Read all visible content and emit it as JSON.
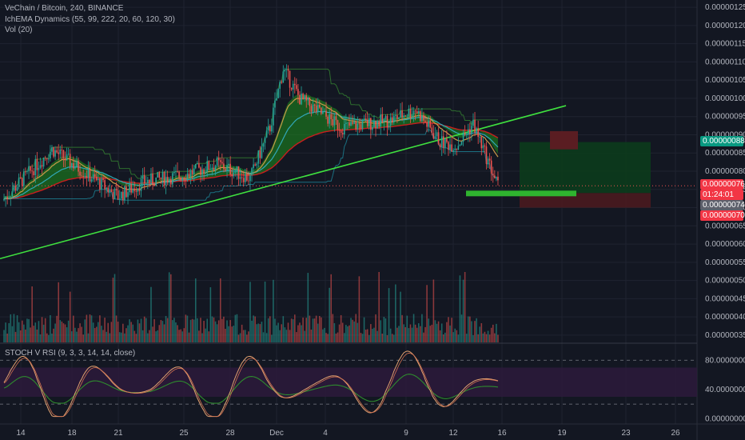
{
  "header": {
    "symbol_line": "VeChain / Bitcoin, 240, BINANCE",
    "indicator_line": "IchEMA Dynamics (55, 99, 222, 20, 60, 120, 30)",
    "volume_line": "Vol (20)",
    "rsi_line": "STOCH V RSI (9, 3, 3, 14, 14, close)"
  },
  "price_tags": {
    "target": "0.00000088",
    "current": "0.00000076",
    "countdown": "01:24:01",
    "level": "0.00000074",
    "stop": "0.00000070"
  },
  "colors": {
    "background": "#131722",
    "up": "#26a69a",
    "down": "#ef5350",
    "cloud": "#1d8f1d",
    "trendline": "#3fe03f",
    "ema_red": "#c81e1e",
    "ema_teal": "#31a8b8",
    "ema_orange": "#c89a4a",
    "rsi_k": "#e0a070",
    "rsi_d": "#2e8b2e",
    "target_tag": "#089981",
    "current_tag": "#f23645"
  },
  "chart_data": [
    {
      "type": "candlestick",
      "title": "VeChain / Bitcoin, 240, BINANCE",
      "x_tick_labels": [
        "14",
        "18",
        "21",
        "25",
        "28",
        "Dec",
        "4",
        "9",
        "12",
        "16",
        "19",
        "23",
        "26"
      ],
      "y_tick_labels": [
        "0.00000125",
        "0.00000120",
        "0.00000115",
        "0.00000110",
        "0.00000105",
        "0.00000100",
        "0.00000095",
        "0.00000090",
        "0.00000085",
        "0.00000080",
        "0.00000075",
        "0.00000070",
        "0.00000065",
        "0.00000060",
        "0.00000055",
        "0.00000050",
        "0.00000045",
        "0.00000040",
        "0.00000035"
      ],
      "ylim": [
        3.3e-07,
        1.27e-06
      ],
      "price_range": [
        6.6e-07,
        1.1e-06
      ],
      "last_close": 7.6e-07,
      "trendline": {
        "start": 5.6e-07,
        "end": 9.8e-07
      },
      "long_position": {
        "entry": 7.4e-07,
        "target": 8.8e-07,
        "stop": 7e-07
      },
      "grid": true
    },
    {
      "type": "bar",
      "name": "Vol (20)",
      "colors": "green/red per candle direction"
    },
    {
      "type": "line",
      "title": "STOCH V RSI (9, 3, 3, 14, 14, close)",
      "y_tick_labels": [
        "80.00000000",
        "40.00000000",
        "0.00000000"
      ],
      "ylim": [
        -5,
        100
      ],
      "band": [
        30,
        70
      ],
      "levels": [
        80,
        20
      ]
    }
  ]
}
